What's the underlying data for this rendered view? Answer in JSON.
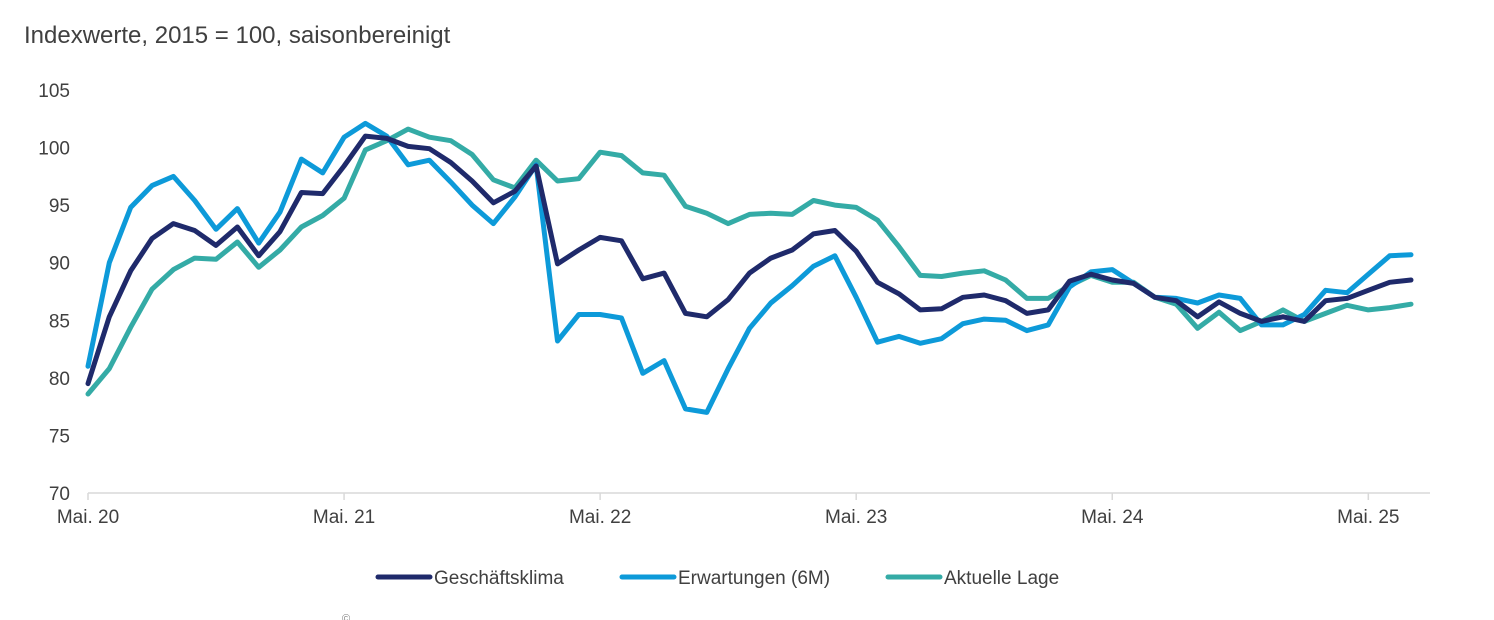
{
  "chart_data": {
    "type": "line",
    "title": "",
    "subtitle": "Indexwerte, 2015 = 100, saisonbereinigt",
    "xlabel": "",
    "ylabel": "",
    "ylim": [
      70,
      105
    ],
    "yticks": [
      70,
      75,
      80,
      85,
      90,
      95,
      100,
      105
    ],
    "x_tick_labels": [
      "Mai. 20",
      "Mai. 21",
      "Mai. 22",
      "Mai. 23",
      "Mai. 24",
      "Mai. 25"
    ],
    "x_tick_indices": [
      0,
      12,
      24,
      36,
      48,
      60
    ],
    "n_points": 63,
    "grid": false,
    "legend_position": "bottom",
    "series": [
      {
        "name": "Geschäftsklima",
        "color": "#1f2a6b",
        "values": [
          79.5,
          85.3,
          89.3,
          92.1,
          93.4,
          92.8,
          91.5,
          93.1,
          90.6,
          92.7,
          96.1,
          96.0,
          98.4,
          101.0,
          100.8,
          100.1,
          99.9,
          98.7,
          97.1,
          95.2,
          96.2,
          98.4,
          89.9,
          91.1,
          92.2,
          91.9,
          88.6,
          89.1,
          85.6,
          85.3,
          86.8,
          89.1,
          90.4,
          91.1,
          92.5,
          92.8,
          91.0,
          88.3,
          87.3,
          85.9,
          86.0,
          87.0,
          87.2,
          86.7,
          85.6,
          85.9,
          88.4,
          89.0,
          88.5,
          88.2,
          87.0,
          86.7,
          85.3,
          86.6,
          85.6,
          84.9,
          85.3,
          84.9,
          86.7,
          86.9,
          87.6,
          88.3,
          88.5
        ]
      },
      {
        "name": "Erwartungen (6M)",
        "color": "#0d9ad9",
        "values": [
          81.0,
          90.0,
          94.8,
          96.7,
          97.5,
          95.4,
          92.9,
          94.7,
          91.7,
          94.4,
          99.0,
          97.8,
          100.9,
          102.1,
          101.0,
          98.5,
          98.9,
          97.0,
          95.0,
          93.4,
          95.7,
          98.5,
          83.2,
          85.5,
          85.5,
          85.2,
          80.4,
          81.5,
          77.3,
          77.0,
          80.8,
          84.3,
          86.5,
          88.0,
          89.7,
          90.6,
          87.0,
          83.1,
          83.6,
          83.0,
          83.4,
          84.7,
          85.1,
          85.0,
          84.1,
          84.6,
          87.9,
          89.2,
          89.4,
          88.2,
          87.0,
          86.9,
          86.5,
          87.2,
          86.9,
          84.6,
          84.6,
          85.5,
          87.6,
          87.4,
          89.0,
          90.6,
          90.7
        ]
      },
      {
        "name": "Aktuelle Lage",
        "color": "#34aba6",
        "values": [
          78.6,
          80.8,
          84.4,
          87.7,
          89.4,
          90.4,
          90.3,
          91.8,
          89.6,
          91.1,
          93.1,
          94.1,
          95.6,
          99.8,
          100.6,
          101.6,
          100.9,
          100.6,
          99.4,
          97.2,
          96.5,
          98.9,
          97.1,
          97.3,
          99.6,
          99.3,
          97.8,
          97.6,
          94.9,
          94.3,
          93.4,
          94.2,
          94.3,
          94.2,
          95.4,
          95.0,
          94.8,
          93.7,
          91.4,
          88.9,
          88.8,
          89.1,
          89.3,
          88.5,
          86.9,
          86.9,
          88.0,
          88.9,
          88.3,
          88.3,
          87.0,
          86.4,
          84.3,
          85.7,
          84.1,
          84.9,
          85.9,
          84.9,
          85.6,
          86.3,
          85.9,
          86.1,
          86.4
        ]
      }
    ]
  },
  "footnote": "©"
}
